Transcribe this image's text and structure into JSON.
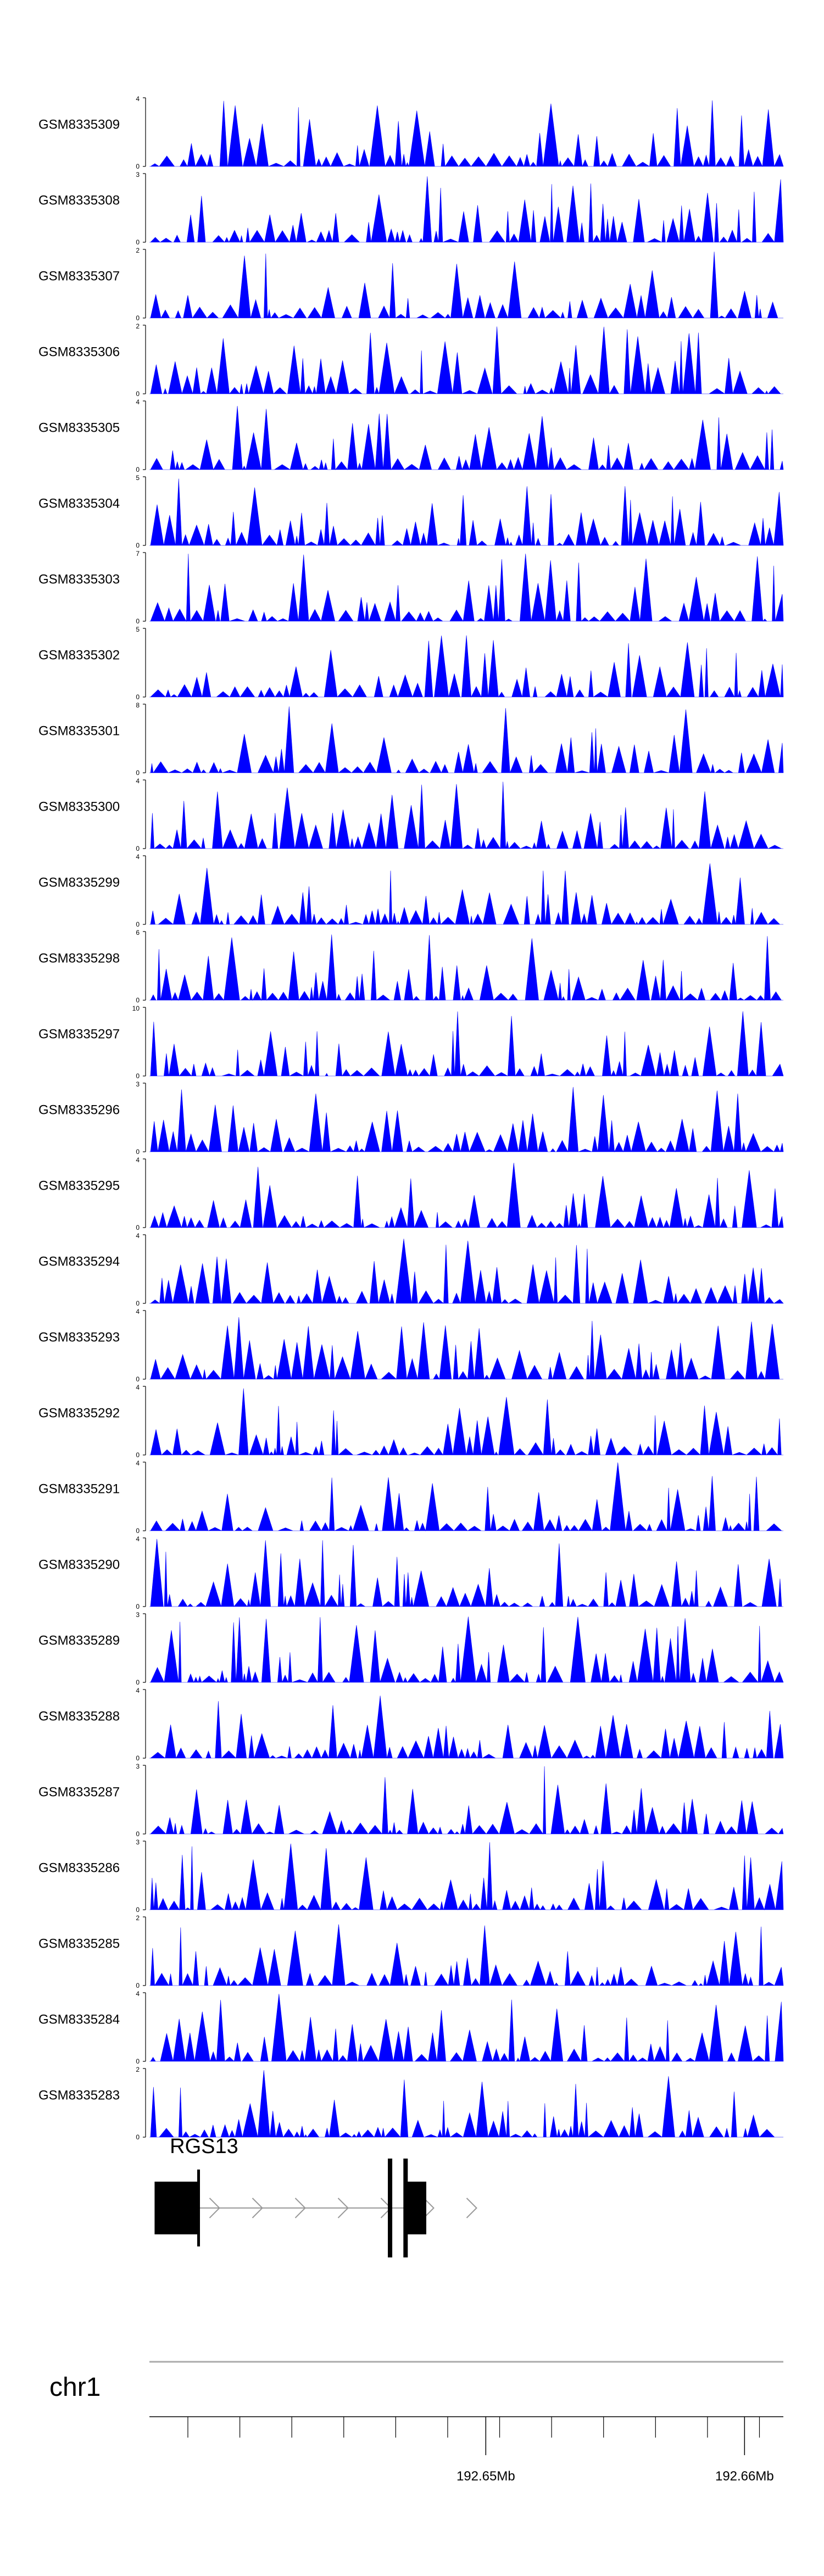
{
  "chart_data": {
    "type": "area",
    "color": "#0000ff",
    "tracks": [
      {
        "name": "GSM8335309",
        "ymax": 4,
        "ymin": 0
      },
      {
        "name": "GSM8335308",
        "ymax": 3,
        "ymin": 0
      },
      {
        "name": "GSM8335307",
        "ymax": 2,
        "ymin": 0
      },
      {
        "name": "GSM8335306",
        "ymax": 2,
        "ymin": 0
      },
      {
        "name": "GSM8335305",
        "ymax": 4,
        "ymin": 0
      },
      {
        "name": "GSM8335304",
        "ymax": 5,
        "ymin": 0
      },
      {
        "name": "GSM8335303",
        "ymax": 7,
        "ymin": 0
      },
      {
        "name": "GSM8335302",
        "ymax": 5,
        "ymin": 0
      },
      {
        "name": "GSM8335301",
        "ymax": 8,
        "ymin": 0
      },
      {
        "name": "GSM8335300",
        "ymax": 4,
        "ymin": 0
      },
      {
        "name": "GSM8335299",
        "ymax": 4,
        "ymin": 0
      },
      {
        "name": "GSM8335298",
        "ymax": 6,
        "ymin": 0
      },
      {
        "name": "GSM8335297",
        "ymax": 10,
        "ymin": 0
      },
      {
        "name": "GSM8335296",
        "ymax": 3,
        "ymin": 0
      },
      {
        "name": "GSM8335295",
        "ymax": 4,
        "ymin": 0
      },
      {
        "name": "GSM8335294",
        "ymax": 4,
        "ymin": 0
      },
      {
        "name": "GSM8335293",
        "ymax": 4,
        "ymin": 0
      },
      {
        "name": "GSM8335292",
        "ymax": 4,
        "ymin": 0
      },
      {
        "name": "GSM8335291",
        "ymax": 4,
        "ymin": 0
      },
      {
        "name": "GSM8335290",
        "ymax": 4,
        "ymin": 0
      },
      {
        "name": "GSM8335289",
        "ymax": 3,
        "ymin": 0
      },
      {
        "name": "GSM8335288",
        "ymax": 4,
        "ymin": 0
      },
      {
        "name": "GSM8335287",
        "ymax": 3,
        "ymin": 0
      },
      {
        "name": "GSM8335286",
        "ymax": 3,
        "ymin": 0
      },
      {
        "name": "GSM8335285",
        "ymax": 2,
        "ymin": 0
      },
      {
        "name": "GSM8335284",
        "ymax": 4,
        "ymin": 0
      },
      {
        "name": "GSM8335283",
        "ymax": 2,
        "ymin": 0
      }
    ],
    "gene": {
      "name": "RGS13",
      "strand": "+",
      "exons": [
        [
          192.6372,
          192.6389
        ],
        [
          192.6469,
          192.6477
        ]
      ],
      "tss": 192.6389,
      "junction_marks": [
        192.6463,
        192.6469
      ]
    },
    "chromosome": "chr1",
    "x_range": [
      192.637,
      192.6615
    ],
    "ticks": [
      192.6376,
      192.6386,
      192.6396,
      192.6406,
      192.6416,
      192.6426,
      192.6436,
      192.6446,
      192.6456,
      192.6466,
      192.6476,
      192.6486,
      192.6496,
      192.6506
    ],
    "tick_labels": [
      {
        "label": "192.65Mb",
        "value": 192.65
      },
      {
        "label": "192.66Mb",
        "value": 192.66
      }
    ]
  }
}
